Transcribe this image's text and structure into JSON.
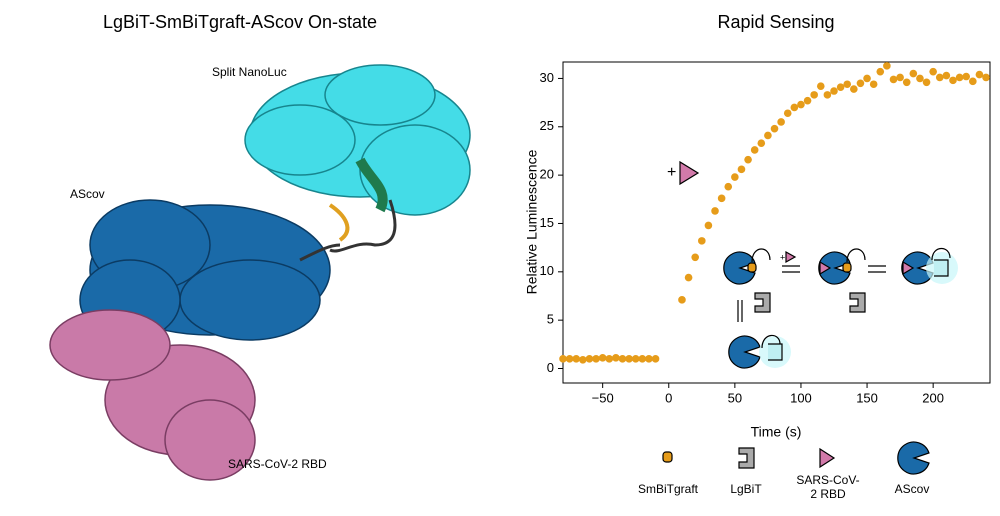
{
  "structure_panel": {
    "title": "LgBiT-SmBiTgraft-AScov On-state",
    "labels": [
      "Split NanoLuc",
      "AScov",
      "SARS-CoV-2 RBD"
    ]
  },
  "chart_data": {
    "type": "scatter",
    "title": "Rapid Sensing",
    "x_label": "Time (s)",
    "y_label": "Relative Luminescence",
    "annotation": "+",
    "scheme_legend": [
      "SmBiTgraft",
      "LgBiT",
      "SARS-CoV-2 RBD",
      "AScov"
    ],
    "color": "#e69c1a",
    "x": [
      -80,
      -75,
      -70,
      -65,
      -60,
      -55,
      -50,
      -45,
      -40,
      -35,
      -30,
      -25,
      -20,
      -15,
      -10,
      10,
      15,
      20,
      25,
      30,
      35,
      40,
      45,
      50,
      55,
      60,
      65,
      70,
      75,
      80,
      85,
      90,
      95,
      100,
      105,
      110,
      115,
      120,
      125,
      130,
      135,
      140,
      145,
      150,
      155,
      160,
      165,
      170,
      175,
      180,
      185,
      190,
      195,
      200,
      205,
      210,
      215,
      220,
      225,
      230,
      235,
      240
    ],
    "values": [
      1.0,
      1.0,
      1.0,
      0.9,
      1.0,
      1.0,
      1.1,
      1.0,
      1.1,
      1.0,
      1.0,
      1.0,
      1.0,
      1.0,
      1.0,
      7.1,
      9.4,
      11.5,
      13.2,
      14.8,
      16.3,
      17.6,
      18.8,
      19.8,
      20.6,
      21.6,
      22.6,
      23.3,
      24.1,
      24.8,
      25.5,
      26.4,
      27.0,
      27.3,
      27.7,
      28.3,
      29.2,
      28.3,
      28.7,
      29.1,
      29.4,
      28.9,
      29.5,
      30.0,
      29.4,
      30.7,
      31.3,
      29.9,
      30.1,
      29.6,
      30.5,
      30.0,
      29.6,
      30.7,
      30.1,
      30.3,
      29.8,
      30.1,
      30.2,
      29.7,
      30.4,
      30.1
    ],
    "xlim": [
      -80,
      243
    ],
    "ylim": [
      -1.5,
      31.7
    ],
    "xticks": [
      {
        "value": -50,
        "label": "−50"
      },
      0,
      50,
      100,
      150,
      200
    ],
    "yticks": [
      0,
      5,
      10,
      15,
      20,
      25,
      30
    ]
  }
}
